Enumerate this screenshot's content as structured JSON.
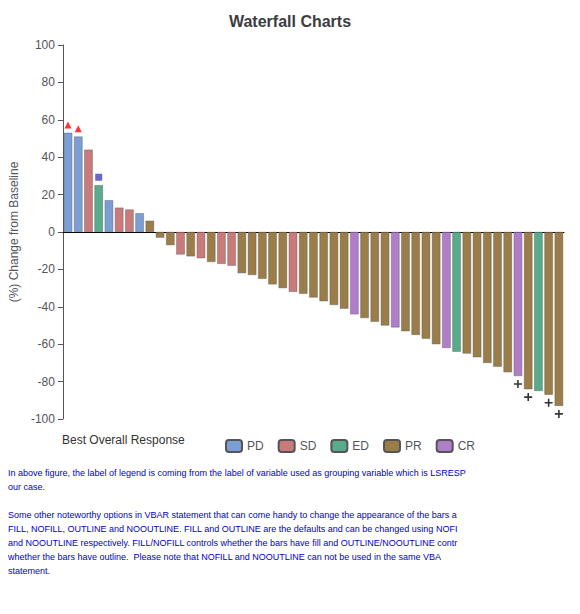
{
  "chart_data": {
    "type": "bar",
    "title": "Waterfall Charts",
    "ylabel": "(%) Change from Baseline",
    "ylim": [
      -100,
      100
    ],
    "yticks": [
      -100,
      -80,
      -60,
      -40,
      -20,
      0,
      20,
      40,
      60,
      80,
      100
    ],
    "grid": false,
    "tick_labels": "y",
    "legend_title": "Best Overall Response",
    "categories": [
      null,
      null,
      null,
      null,
      null,
      null,
      null,
      null,
      null,
      null,
      null,
      null,
      null,
      null,
      null,
      null,
      null,
      null,
      null,
      null,
      null,
      null,
      null,
      null,
      null,
      null,
      null,
      null,
      null,
      null,
      null,
      null,
      null,
      null,
      null,
      null,
      null,
      null,
      null,
      null,
      null,
      null,
      null,
      null,
      null,
      null,
      null,
      null,
      null
    ],
    "series": [
      {
        "name": "PD",
        "color": "#7b9fd4",
        "values": [
          53,
          51,
          null,
          null,
          17,
          null,
          null,
          10,
          null,
          null,
          null,
          null,
          null,
          null,
          null,
          null,
          null,
          null,
          null,
          null,
          null,
          null,
          null,
          null,
          null,
          null,
          null,
          null,
          null,
          null,
          null,
          null,
          null,
          null,
          null,
          null,
          null,
          null,
          null,
          null,
          null,
          null,
          null,
          null,
          null,
          null,
          null,
          null,
          null
        ]
      },
      {
        "name": "SD",
        "color": "#c97b7b",
        "values": [
          null,
          null,
          44,
          null,
          null,
          13,
          12,
          null,
          null,
          null,
          null,
          -12,
          null,
          -14,
          null,
          -17,
          -18,
          null,
          null,
          null,
          null,
          null,
          -32,
          null,
          null,
          null,
          null,
          null,
          null,
          null,
          null,
          null,
          null,
          null,
          null,
          null,
          null,
          null,
          null,
          null,
          null,
          null,
          null,
          null,
          null,
          null,
          null,
          null,
          null
        ]
      },
      {
        "name": "ED",
        "color": "#5aaa8c",
        "values": [
          null,
          null,
          null,
          25,
          null,
          null,
          null,
          null,
          null,
          null,
          null,
          null,
          null,
          null,
          null,
          null,
          null,
          null,
          null,
          null,
          null,
          null,
          null,
          null,
          null,
          null,
          null,
          null,
          null,
          null,
          null,
          null,
          null,
          null,
          null,
          null,
          null,
          null,
          -64,
          null,
          null,
          null,
          null,
          null,
          null,
          null,
          -85,
          null,
          null
        ]
      },
      {
        "name": "PR",
        "color": "#9b7d4a",
        "values": [
          null,
          null,
          null,
          null,
          null,
          null,
          null,
          null,
          6,
          -3,
          -7,
          null,
          -13,
          null,
          -16,
          null,
          null,
          -22,
          -23,
          -25,
          -28,
          -30,
          null,
          -33,
          -35,
          -37,
          -39,
          -41,
          null,
          -46,
          -48,
          -50,
          null,
          -53,
          -55,
          -57,
          -60,
          null,
          null,
          -65,
          -67,
          -70,
          -72,
          -75,
          null,
          -84,
          null,
          -87,
          -93
        ]
      },
      {
        "name": "CR",
        "color": "#b07ec8",
        "values": [
          null,
          null,
          null,
          null,
          null,
          null,
          null,
          null,
          null,
          null,
          null,
          null,
          null,
          null,
          null,
          null,
          null,
          null,
          null,
          null,
          null,
          null,
          null,
          null,
          null,
          null,
          null,
          null,
          -44,
          null,
          null,
          null,
          -51,
          null,
          null,
          null,
          null,
          -62,
          null,
          null,
          null,
          null,
          null,
          null,
          -77,
          null,
          null,
          null,
          null
        ]
      }
    ],
    "markers": [
      {
        "marker": "triangle",
        "color": "red"
      },
      {
        "marker": "triangle",
        "color": "red"
      },
      null,
      {
        "marker": "square",
        "color": "#4444bb"
      },
      null,
      null,
      null,
      null,
      null,
      null,
      null,
      null,
      null,
      null,
      null,
      null,
      null,
      null,
      null,
      null,
      null,
      null,
      null,
      null,
      null,
      null,
      null,
      null,
      null,
      null,
      null,
      null,
      null,
      null,
      null,
      null,
      null,
      null,
      null,
      null,
      null,
      null,
      null,
      null,
      {
        "marker": "plus",
        "color": "black"
      },
      {
        "marker": "plus",
        "color": "black"
      },
      null,
      {
        "marker": "plus",
        "color": "black"
      },
      {
        "marker": "plus",
        "color": "black"
      }
    ],
    "annotations": [
      {
        "color": "#0000cc",
        "lines": [
          "In above figure, the label of legend is coming from the label of variable used as grouping variable which is LSRESP",
          "our case."
        ]
      },
      {
        "color": "#0000cc",
        "lines": [
          "Some other noteworthy options in VBAR statement that can come handy to change the appearance of the bars a",
          "FILL, NOFILL, OUTLINE and NOOUTLINE. FILL and OUTLINE are the defaults and can be changed using NOFI",
          "and NOOUTLINE respectively. FILL/NOFILL controls whether the bars have fill and OUTLINE/NOOUTLINE contr",
          "whether the bars have outline.  Please note that NOFILL and NOOUTLINE can not be used in the same VBA",
          "statement."
        ]
      }
    ]
  }
}
